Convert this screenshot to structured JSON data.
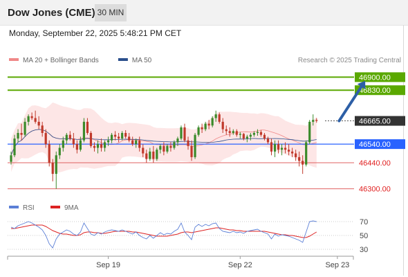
{
  "header": {
    "title": "Dow Jones (CME)",
    "interval": "30 MIN",
    "datetime": "Monday, September 22, 2025 5:48:21 PM CET"
  },
  "colors": {
    "up": "#3a8a2a",
    "down": "#c0392b",
    "resistance": "#5aa800",
    "pivot": "#2962ff",
    "support": "#e06060",
    "current": "#333333",
    "band": "#fde3e3",
    "ma20": "#f08888",
    "ma50": "#2b4f8c",
    "rsi": "#5b7fd6",
    "rsi_ma": "#dd2222",
    "arrow": "#2d5fa6"
  },
  "chart_data": [
    {
      "type": "candlestick",
      "legend": [
        {
          "name": "MA 20 + Bollinger Bands",
          "color": "#f08888"
        },
        {
          "name": "MA 50",
          "color": "#2b4f8c"
        }
      ],
      "watermark": "Research © 2025 Trading Central",
      "ylim": [
        46250,
        46950
      ],
      "x_ticks": [
        {
          "label": "Sep 19",
          "index": 28
        },
        {
          "label": "Sep 22",
          "index": 66
        },
        {
          "label": "Sep 23",
          "index": 94
        }
      ],
      "levels": [
        {
          "label": "46900.00",
          "value": 46900,
          "kind": "resistance"
        },
        {
          "label": "46830.00",
          "value": 46830,
          "kind": "resistance"
        },
        {
          "label": "46665.00",
          "value": 46665,
          "kind": "current"
        },
        {
          "label": "46540.00",
          "value": 46540,
          "kind": "pivot"
        },
        {
          "label": "46440.00",
          "value": 46440,
          "kind": "support"
        },
        {
          "label": "46300.00",
          "value": 46300,
          "kind": "support"
        }
      ],
      "forecast_arrow": {
        "from_index": 94.5,
        "from_value": 46665,
        "to_index": 102,
        "to_value": 46880
      },
      "candles": [
        [
          46445,
          46500,
          46430,
          46480
        ],
        [
          46480,
          46590,
          46470,
          46570
        ],
        [
          46570,
          46620,
          46550,
          46600
        ],
        [
          46600,
          46650,
          46560,
          46590
        ],
        [
          46590,
          46680,
          46580,
          46660
        ],
        [
          46660,
          46700,
          46640,
          46690
        ],
        [
          46690,
          46710,
          46670,
          46680
        ],
        [
          46680,
          46720,
          46650,
          46660
        ],
        [
          46660,
          46690,
          46620,
          46640
        ],
        [
          46640,
          46660,
          46580,
          46600
        ],
        [
          46600,
          46620,
          46520,
          46540
        ],
        [
          46540,
          46560,
          46420,
          46440
        ],
        [
          46440,
          46460,
          46340,
          46380
        ],
        [
          46380,
          46500,
          46300,
          46480
        ],
        [
          46480,
          46540,
          46460,
          46520
        ],
        [
          46520,
          46580,
          46500,
          46560
        ],
        [
          46560,
          46600,
          46540,
          46590
        ],
        [
          46590,
          46610,
          46560,
          46570
        ],
        [
          46570,
          46600,
          46520,
          46540
        ],
        [
          46540,
          46560,
          46490,
          46510
        ],
        [
          46510,
          46580,
          46500,
          46560
        ],
        [
          46560,
          46680,
          46550,
          46660
        ],
        [
          46660,
          46680,
          46590,
          46600
        ],
        [
          46600,
          46610,
          46520,
          46530
        ],
        [
          46530,
          46550,
          46500,
          46520
        ],
        [
          46520,
          46560,
          46490,
          46540
        ],
        [
          46540,
          46570,
          46500,
          46520
        ],
        [
          46520,
          46560,
          46500,
          46550
        ],
        [
          46550,
          46580,
          46530,
          46560
        ],
        [
          46560,
          46600,
          46545,
          46590
        ],
        [
          46590,
          46610,
          46560,
          46580
        ],
        [
          46580,
          46600,
          46550,
          46570
        ],
        [
          46570,
          46610,
          46560,
          46600
        ],
        [
          46600,
          46615,
          46570,
          46580
        ],
        [
          46580,
          46600,
          46550,
          46560
        ],
        [
          46560,
          46580,
          46530,
          46540
        ],
        [
          46540,
          46570,
          46520,
          46560
        ],
        [
          46560,
          46580,
          46500,
          46520
        ],
        [
          46520,
          46540,
          46470,
          46490
        ],
        [
          46490,
          46510,
          46440,
          46460
        ],
        [
          46460,
          46520,
          46450,
          46500
        ],
        [
          46500,
          46530,
          46440,
          46460
        ],
        [
          46460,
          46520,
          46450,
          46510
        ],
        [
          46510,
          46540,
          46490,
          46530
        ],
        [
          46530,
          46550,
          46480,
          46500
        ],
        [
          46500,
          46540,
          46490,
          46530
        ],
        [
          46530,
          46550,
          46500,
          46520
        ],
        [
          46520,
          46560,
          46510,
          46550
        ],
        [
          46550,
          46580,
          46530,
          46570
        ],
        [
          46570,
          46640,
          46560,
          46630
        ],
        [
          46630,
          46650,
          46550,
          46560
        ],
        [
          46560,
          46580,
          46510,
          46530
        ],
        [
          46530,
          46560,
          46450,
          46470
        ],
        [
          46470,
          46600,
          46460,
          46590
        ],
        [
          46590,
          46640,
          46580,
          46630
        ],
        [
          46630,
          46650,
          46600,
          46620
        ],
        [
          46620,
          46660,
          46610,
          46650
        ],
        [
          46650,
          46670,
          46620,
          46640
        ],
        [
          46640,
          46690,
          46630,
          46680
        ],
        [
          46680,
          46720,
          46660,
          46700
        ],
        [
          46700,
          46710,
          46650,
          46660
        ],
        [
          46660,
          46680,
          46600,
          46620
        ],
        [
          46620,
          46640,
          46590,
          46610
        ],
        [
          46610,
          46630,
          46580,
          46600
        ],
        [
          46600,
          46620,
          46590,
          46610
        ],
        [
          46610,
          46620,
          46580,
          46590
        ],
        [
          46590,
          46605,
          46570,
          46595
        ],
        [
          46595,
          46600,
          46560,
          46570
        ],
        [
          46570,
          46590,
          46550,
          46580
        ],
        [
          46580,
          46600,
          46560,
          46590
        ],
        [
          46590,
          46610,
          46580,
          46600
        ],
        [
          46600,
          46620,
          46585,
          46605
        ],
        [
          46605,
          46615,
          46580,
          46590
        ],
        [
          46590,
          46600,
          46560,
          46570
        ],
        [
          46570,
          46580,
          46540,
          46550
        ],
        [
          46550,
          46570,
          46480,
          46500
        ],
        [
          46500,
          46560,
          46470,
          46540
        ],
        [
          46540,
          46560,
          46490,
          46510
        ],
        [
          46510,
          46540,
          46480,
          46520
        ],
        [
          46520,
          46550,
          46490,
          46510
        ],
        [
          46510,
          46540,
          46480,
          46500
        ],
        [
          46500,
          46520,
          46470,
          46490
        ],
        [
          46490,
          46510,
          46450,
          46470
        ],
        [
          46470,
          46500,
          46420,
          46450
        ],
        [
          46450,
          46480,
          46380,
          46430
        ],
        [
          46430,
          46560,
          46420,
          46550
        ],
        [
          46550,
          46670,
          46540,
          46660
        ],
        [
          46660,
          46700,
          46640,
          46670
        ],
        [
          46670,
          46680,
          46655,
          46665
        ]
      ]
    },
    {
      "type": "line",
      "legend": [
        {
          "name": "RSI",
          "color": "#5b7fd6"
        },
        {
          "name": "9MA",
          "color": "#dd2222"
        }
      ],
      "ylim": [
        20,
        80
      ],
      "y_ticks": [
        70,
        50,
        30
      ],
      "series": [
        {
          "name": "RSI",
          "values": [
            62,
            60,
            64,
            66,
            68,
            70,
            68,
            65,
            62,
            58,
            50,
            38,
            32,
            45,
            52,
            55,
            58,
            56,
            52,
            50,
            55,
            68,
            60,
            52,
            50,
            54,
            52,
            55,
            57,
            58,
            57,
            56,
            58,
            56,
            54,
            52,
            55,
            50,
            47,
            45,
            50,
            46,
            50,
            54,
            51,
            53,
            52,
            56,
            59,
            68,
            55,
            50,
            44,
            62,
            66,
            63,
            66,
            64,
            67,
            68,
            60,
            56,
            55,
            54,
            56,
            54,
            55,
            53,
            56,
            57,
            58,
            59,
            56,
            54,
            52,
            45,
            52,
            49,
            51,
            50,
            49,
            47,
            45,
            43,
            40,
            55,
            70,
            71,
            70
          ]
        },
        {
          "name": "9MA",
          "values": [
            60,
            60,
            61,
            62,
            63,
            64,
            65,
            65,
            65,
            65,
            63,
            60,
            57,
            55,
            53,
            52,
            52,
            51,
            50,
            50,
            51,
            54,
            55,
            55,
            54,
            54,
            53,
            53,
            54,
            55,
            56,
            56,
            56,
            56,
            56,
            55,
            55,
            54,
            53,
            52,
            51,
            50,
            49,
            49,
            49,
            49,
            50,
            51,
            52,
            54,
            55,
            55,
            54,
            55,
            56,
            57,
            58,
            59,
            60,
            61,
            61,
            60,
            59,
            58,
            58,
            57,
            57,
            56,
            56,
            56,
            56,
            56,
            56,
            56,
            55,
            54,
            53,
            52,
            51,
            51,
            50,
            50,
            49,
            48,
            47,
            47,
            49,
            52,
            55
          ]
        }
      ]
    }
  ]
}
